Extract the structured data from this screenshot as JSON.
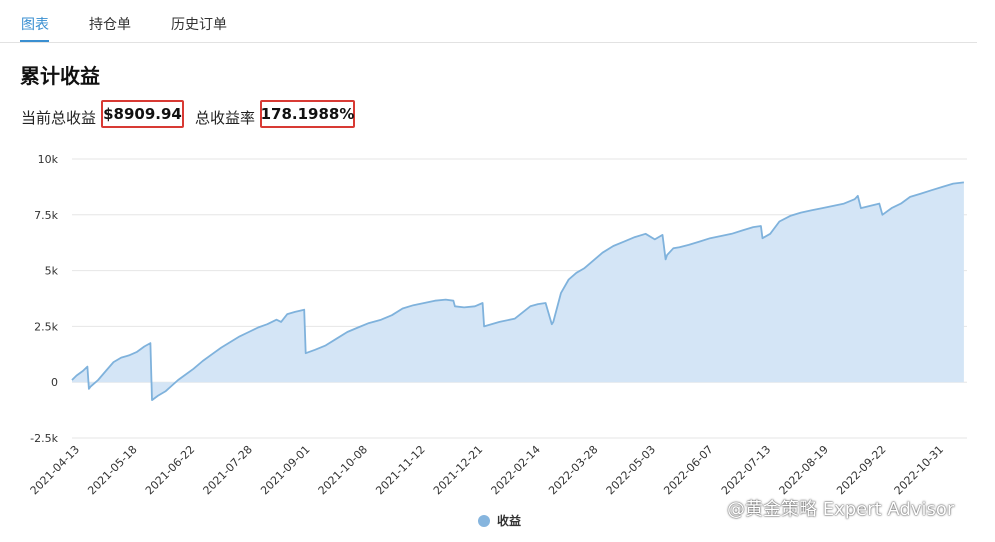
{
  "tabs": [
    {
      "label": "图表",
      "active": true
    },
    {
      "label": "持仓单",
      "active": false
    },
    {
      "label": "历史订单",
      "active": false
    }
  ],
  "title": "累计收益",
  "stats": {
    "total_profit_label": "当前总收益",
    "total_profit_value": "$8909.94",
    "total_return_label": "总收益率",
    "total_return_value": "178.1988%"
  },
  "colors": {
    "accent": "#3a8fd1",
    "highlight_box": "#d83a34",
    "series_line": "#7fb2dc",
    "series_fill": "#d4e5f6"
  },
  "chart_data": {
    "type": "area",
    "title": "",
    "xlabel": "",
    "ylabel": "",
    "ylim": [
      -2500,
      10000
    ],
    "yticks": [
      -2500,
      0,
      2500,
      5000,
      7500,
      10000
    ],
    "ytick_labels": [
      "-2.5k",
      "0",
      "2.5k",
      "5k",
      "7.5k",
      "10k"
    ],
    "xlim": [
      "2021-04-13",
      "2022-11-16"
    ],
    "xtick_labels": [
      "2021-04-13",
      "2021-05-18",
      "2021-06-22",
      "2021-07-28",
      "2021-09-01",
      "2021-10-08",
      "2021-11-12",
      "2021-12-21",
      "2022-02-14",
      "2022-03-28",
      "2022-05-03",
      "2022-06-07",
      "2022-07-13",
      "2022-08-19",
      "2022-09-22",
      "2022-10-31"
    ],
    "grid": true,
    "legend": "bottom-center",
    "series": [
      {
        "name": "收益",
        "x": [
          "2021-04-13",
          "2021-04-16",
          "2021-04-20",
          "2021-04-23",
          "2021-04-24",
          "2021-04-25",
          "2021-04-30",
          "2021-05-05",
          "2021-05-10",
          "2021-05-15",
          "2021-05-20",
          "2021-05-25",
          "2021-05-30",
          "2021-06-03",
          "2021-06-04",
          "2021-06-08",
          "2021-06-13",
          "2021-06-17",
          "2021-06-21",
          "2021-06-25",
          "2021-07-01",
          "2021-07-07",
          "2021-07-13",
          "2021-07-19",
          "2021-07-25",
          "2021-07-31",
          "2021-08-06",
          "2021-08-12",
          "2021-08-18",
          "2021-08-24",
          "2021-08-27",
          "2021-08-31",
          "2021-09-05",
          "2021-09-11",
          "2021-09-12",
          "2021-09-18",
          "2021-09-25",
          "2021-10-02",
          "2021-10-09",
          "2021-10-16",
          "2021-10-23",
          "2021-10-31",
          "2021-11-07",
          "2021-11-14",
          "2021-11-21",
          "2021-11-28",
          "2021-12-05",
          "2021-12-12",
          "2021-12-17",
          "2021-12-18",
          "2021-12-24",
          "2021-12-31",
          "2022-01-05",
          "2022-01-06",
          "2022-01-16",
          "2022-01-26",
          "2022-02-05",
          "2022-02-10",
          "2022-02-15",
          "2022-02-19",
          "2022-02-20",
          "2022-02-25",
          "2022-03-02",
          "2022-03-07",
          "2022-03-12",
          "2022-03-18",
          "2022-03-24",
          "2022-03-31",
          "2022-04-07",
          "2022-04-14",
          "2022-04-21",
          "2022-04-27",
          "2022-05-02",
          "2022-05-04",
          "2022-05-05",
          "2022-05-09",
          "2022-05-13",
          "2022-05-19",
          "2022-05-26",
          "2022-06-02",
          "2022-06-09",
          "2022-06-16",
          "2022-06-23",
          "2022-06-30",
          "2022-07-05",
          "2022-07-06",
          "2022-07-11",
          "2022-07-17",
          "2022-07-24",
          "2022-07-31",
          "2022-08-07",
          "2022-08-14",
          "2022-08-21",
          "2022-08-28",
          "2022-09-04",
          "2022-09-06",
          "2022-09-08",
          "2022-09-14",
          "2022-09-20",
          "2022-09-22",
          "2022-09-28",
          "2022-10-04",
          "2022-10-10",
          "2022-10-17",
          "2022-10-24",
          "2022-10-31",
          "2022-11-07",
          "2022-11-14"
        ],
        "values": [
          100,
          300,
          500,
          700,
          -300,
          -200,
          100,
          500,
          900,
          1100,
          1200,
          1350,
          1600,
          1750,
          -800,
          -600,
          -400,
          -150,
          100,
          300,
          600,
          950,
          1250,
          1550,
          1800,
          2050,
          2250,
          2450,
          2600,
          2800,
          2700,
          3050,
          3150,
          3250,
          1300,
          1450,
          1650,
          1950,
          2250,
          2450,
          2650,
          2800,
          3000,
          3300,
          3450,
          3550,
          3650,
          3700,
          3650,
          3400,
          3350,
          3400,
          3550,
          2500,
          2700,
          2850,
          3400,
          3500,
          3550,
          2600,
          2700,
          4000,
          4600,
          4900,
          5100,
          5450,
          5800,
          6100,
          6300,
          6500,
          6650,
          6400,
          6600,
          5500,
          5700,
          6000,
          6050,
          6150,
          6300,
          6450,
          6550,
          6650,
          6800,
          6950,
          7000,
          6450,
          6650,
          7200,
          7450,
          7600,
          7700,
          7800,
          7900,
          8000,
          8200,
          8350,
          7800,
          7900,
          8000,
          7500,
          7800,
          8000,
          8300,
          8450,
          8600,
          8750,
          8900,
          8950
        ]
      }
    ]
  },
  "legend": {
    "label": "收益"
  },
  "watermark": "@黄金策略 Expert Advisor"
}
